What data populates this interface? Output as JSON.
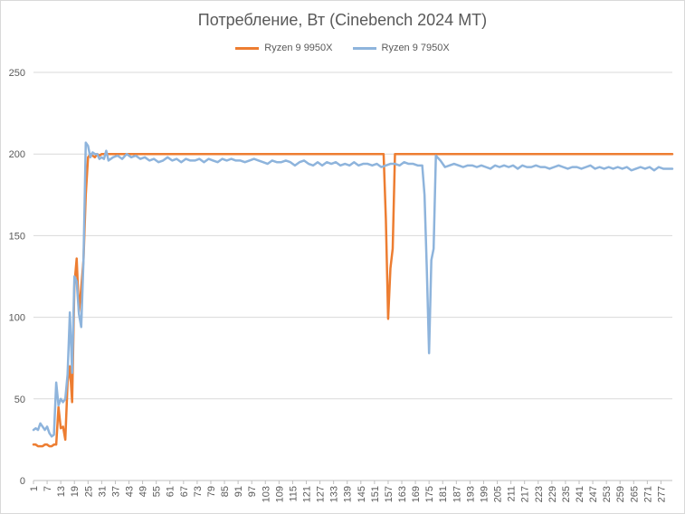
{
  "chart_data": {
    "type": "line",
    "title": "Потребление, Вт (Cinebench 2024 MT)",
    "xlabel": "",
    "ylabel": "",
    "ylim": [
      0,
      250
    ],
    "yticks": [
      0,
      50,
      100,
      150,
      200,
      250
    ],
    "xlim": [
      1,
      282
    ],
    "xticks": [
      1,
      7,
      13,
      19,
      25,
      31,
      37,
      43,
      49,
      55,
      61,
      67,
      73,
      79,
      85,
      91,
      97,
      103,
      109,
      115,
      121,
      127,
      133,
      139,
      145,
      151,
      157,
      163,
      169,
      175,
      181,
      187,
      193,
      199,
      205,
      211,
      217,
      223,
      229,
      235,
      241,
      247,
      253,
      259,
      265,
      271,
      277
    ],
    "grid": true,
    "legend_position": "top",
    "series": [
      {
        "name": "Ryzen 9 9950X",
        "color": "#ed7d31",
        "points": [
          [
            1,
            22
          ],
          [
            2,
            22
          ],
          [
            3,
            21
          ],
          [
            4,
            21
          ],
          [
            5,
            21
          ],
          [
            6,
            22
          ],
          [
            7,
            22
          ],
          [
            8,
            21
          ],
          [
            9,
            21
          ],
          [
            10,
            22
          ],
          [
            11,
            22
          ],
          [
            12,
            45
          ],
          [
            13,
            32
          ],
          [
            14,
            33
          ],
          [
            15,
            25
          ],
          [
            16,
            60
          ],
          [
            17,
            70
          ],
          [
            18,
            48
          ],
          [
            19,
            120
          ],
          [
            20,
            136
          ],
          [
            21,
            103
          ],
          [
            22,
            118
          ],
          [
            23,
            135
          ],
          [
            24,
            175
          ],
          [
            25,
            198
          ],
          [
            26,
            200
          ],
          [
            27,
            199
          ],
          [
            28,
            198
          ],
          [
            29,
            200
          ],
          [
            30,
            199
          ],
          [
            31,
            200
          ],
          [
            32,
            200
          ],
          [
            40,
            200
          ],
          [
            60,
            200
          ],
          [
            80,
            200
          ],
          [
            100,
            200
          ],
          [
            120,
            200
          ],
          [
            140,
            200
          ],
          [
            155,
            200
          ],
          [
            156,
            160
          ],
          [
            157,
            99
          ],
          [
            158,
            130
          ],
          [
            159,
            142
          ],
          [
            160,
            200
          ],
          [
            170,
            200
          ],
          [
            190,
            200
          ],
          [
            210,
            200
          ],
          [
            230,
            200
          ],
          [
            250,
            200
          ],
          [
            270,
            200
          ],
          [
            282,
            200
          ]
        ]
      },
      {
        "name": "Ryzen 9 7950X",
        "color": "#8eb4dc",
        "points": [
          [
            1,
            31
          ],
          [
            2,
            32
          ],
          [
            3,
            31
          ],
          [
            4,
            35
          ],
          [
            5,
            33
          ],
          [
            6,
            31
          ],
          [
            7,
            33
          ],
          [
            8,
            29
          ],
          [
            9,
            27
          ],
          [
            10,
            28
          ],
          [
            11,
            60
          ],
          [
            12,
            46
          ],
          [
            13,
            50
          ],
          [
            14,
            48
          ],
          [
            15,
            50
          ],
          [
            16,
            65
          ],
          [
            17,
            103
          ],
          [
            18,
            66
          ],
          [
            19,
            125
          ],
          [
            20,
            122
          ],
          [
            21,
            102
          ],
          [
            22,
            94
          ],
          [
            23,
            135
          ],
          [
            24,
            207
          ],
          [
            25,
            205
          ],
          [
            26,
            198
          ],
          [
            27,
            201
          ],
          [
            28,
            200
          ],
          [
            29,
            200
          ],
          [
            30,
            197
          ],
          [
            31,
            198
          ],
          [
            32,
            197
          ],
          [
            33,
            202
          ],
          [
            34,
            196
          ],
          [
            36,
            198
          ],
          [
            38,
            199
          ],
          [
            40,
            197
          ],
          [
            42,
            200
          ],
          [
            44,
            198
          ],
          [
            46,
            199
          ],
          [
            48,
            197
          ],
          [
            50,
            198
          ],
          [
            52,
            196
          ],
          [
            54,
            197
          ],
          [
            56,
            195
          ],
          [
            58,
            196
          ],
          [
            60,
            198
          ],
          [
            62,
            196
          ],
          [
            64,
            197
          ],
          [
            66,
            195
          ],
          [
            68,
            197
          ],
          [
            70,
            196
          ],
          [
            72,
            196
          ],
          [
            74,
            197
          ],
          [
            76,
            195
          ],
          [
            78,
            197
          ],
          [
            80,
            196
          ],
          [
            82,
            195
          ],
          [
            84,
            197
          ],
          [
            86,
            196
          ],
          [
            88,
            197
          ],
          [
            90,
            196
          ],
          [
            92,
            196
          ],
          [
            94,
            195
          ],
          [
            96,
            196
          ],
          [
            98,
            197
          ],
          [
            100,
            196
          ],
          [
            102,
            195
          ],
          [
            104,
            194
          ],
          [
            106,
            196
          ],
          [
            108,
            195
          ],
          [
            110,
            195
          ],
          [
            112,
            196
          ],
          [
            114,
            195
          ],
          [
            116,
            193
          ],
          [
            118,
            195
          ],
          [
            120,
            196
          ],
          [
            122,
            194
          ],
          [
            124,
            193
          ],
          [
            126,
            195
          ],
          [
            128,
            193
          ],
          [
            130,
            195
          ],
          [
            132,
            194
          ],
          [
            134,
            195
          ],
          [
            136,
            193
          ],
          [
            138,
            194
          ],
          [
            140,
            193
          ],
          [
            142,
            195
          ],
          [
            144,
            193
          ],
          [
            146,
            194
          ],
          [
            148,
            194
          ],
          [
            150,
            193
          ],
          [
            152,
            194
          ],
          [
            154,
            192
          ],
          [
            156,
            193
          ],
          [
            158,
            194
          ],
          [
            160,
            194
          ],
          [
            162,
            193
          ],
          [
            164,
            195
          ],
          [
            166,
            194
          ],
          [
            168,
            194
          ],
          [
            170,
            193
          ],
          [
            172,
            193
          ],
          [
            173,
            175
          ],
          [
            174,
            130
          ],
          [
            175,
            78
          ],
          [
            176,
            135
          ],
          [
            177,
            142
          ],
          [
            178,
            199
          ],
          [
            180,
            196
          ],
          [
            182,
            192
          ],
          [
            184,
            193
          ],
          [
            186,
            194
          ],
          [
            188,
            193
          ],
          [
            190,
            192
          ],
          [
            192,
            193
          ],
          [
            194,
            193
          ],
          [
            196,
            192
          ],
          [
            198,
            193
          ],
          [
            200,
            192
          ],
          [
            202,
            191
          ],
          [
            204,
            193
          ],
          [
            206,
            192
          ],
          [
            208,
            193
          ],
          [
            210,
            192
          ],
          [
            212,
            193
          ],
          [
            214,
            191
          ],
          [
            216,
            193
          ],
          [
            218,
            192
          ],
          [
            220,
            192
          ],
          [
            222,
            193
          ],
          [
            224,
            192
          ],
          [
            226,
            192
          ],
          [
            228,
            191
          ],
          [
            230,
            192
          ],
          [
            232,
            193
          ],
          [
            234,
            192
          ],
          [
            236,
            191
          ],
          [
            238,
            192
          ],
          [
            240,
            192
          ],
          [
            242,
            191
          ],
          [
            244,
            192
          ],
          [
            246,
            193
          ],
          [
            248,
            191
          ],
          [
            250,
            192
          ],
          [
            252,
            191
          ],
          [
            254,
            192
          ],
          [
            256,
            191
          ],
          [
            258,
            192
          ],
          [
            260,
            191
          ],
          [
            262,
            192
          ],
          [
            264,
            190
          ],
          [
            266,
            191
          ],
          [
            268,
            192
          ],
          [
            270,
            191
          ],
          [
            272,
            192
          ],
          [
            274,
            190
          ],
          [
            276,
            192
          ],
          [
            278,
            191
          ],
          [
            280,
            191
          ],
          [
            282,
            191
          ]
        ]
      }
    ]
  }
}
